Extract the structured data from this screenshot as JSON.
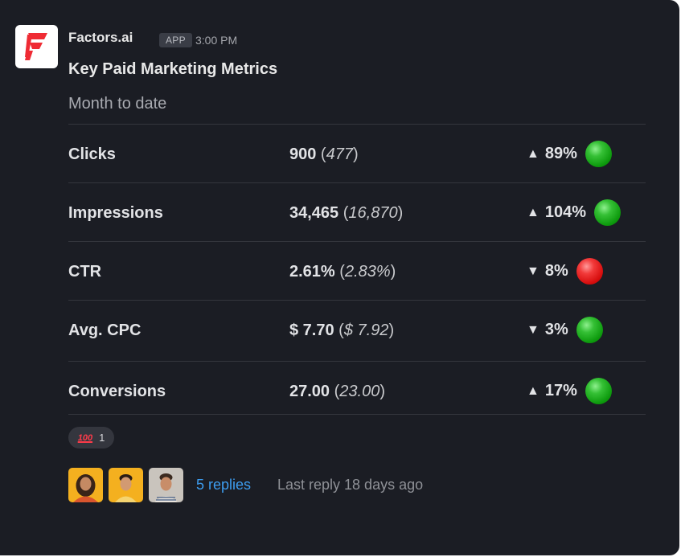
{
  "message": {
    "sender": "Factors.ai",
    "badge": "APP",
    "time": "3:00 PM",
    "title": "Key Paid Marketing Metrics",
    "subtitle": "Month to date"
  },
  "metrics": [
    {
      "name": "Clicks",
      "value": "900",
      "previous": "477",
      "direction": "up",
      "change": "89%",
      "status": "green"
    },
    {
      "name": "Impressions",
      "value": "34,465",
      "previous": "16,870",
      "direction": "up",
      "change": "104%",
      "status": "green"
    },
    {
      "name": "CTR",
      "value": "2.61%",
      "previous": "2.83%",
      "direction": "down",
      "change": "8%",
      "status": "red"
    },
    {
      "name": "Avg. CPC",
      "value": "$ 7.70",
      "previous": "$ 7.92",
      "direction": "down",
      "change": "3%",
      "status": "green"
    },
    {
      "name": "Conversions",
      "value": "27.00",
      "previous": "23.00",
      "direction": "up",
      "change": "17%",
      "status": "green"
    }
  ],
  "arrows": {
    "up": "▲",
    "down": "▼"
  },
  "reaction": {
    "emoji": "100",
    "count": "1"
  },
  "thread": {
    "replies": "5 replies",
    "last_reply": "Last reply 18 days ago"
  },
  "colors": {
    "background": "#1b1d24",
    "brand": "#ef2b34",
    "link": "#3d9df0",
    "status_green": "#1db41d",
    "status_red": "#e81a1a"
  }
}
